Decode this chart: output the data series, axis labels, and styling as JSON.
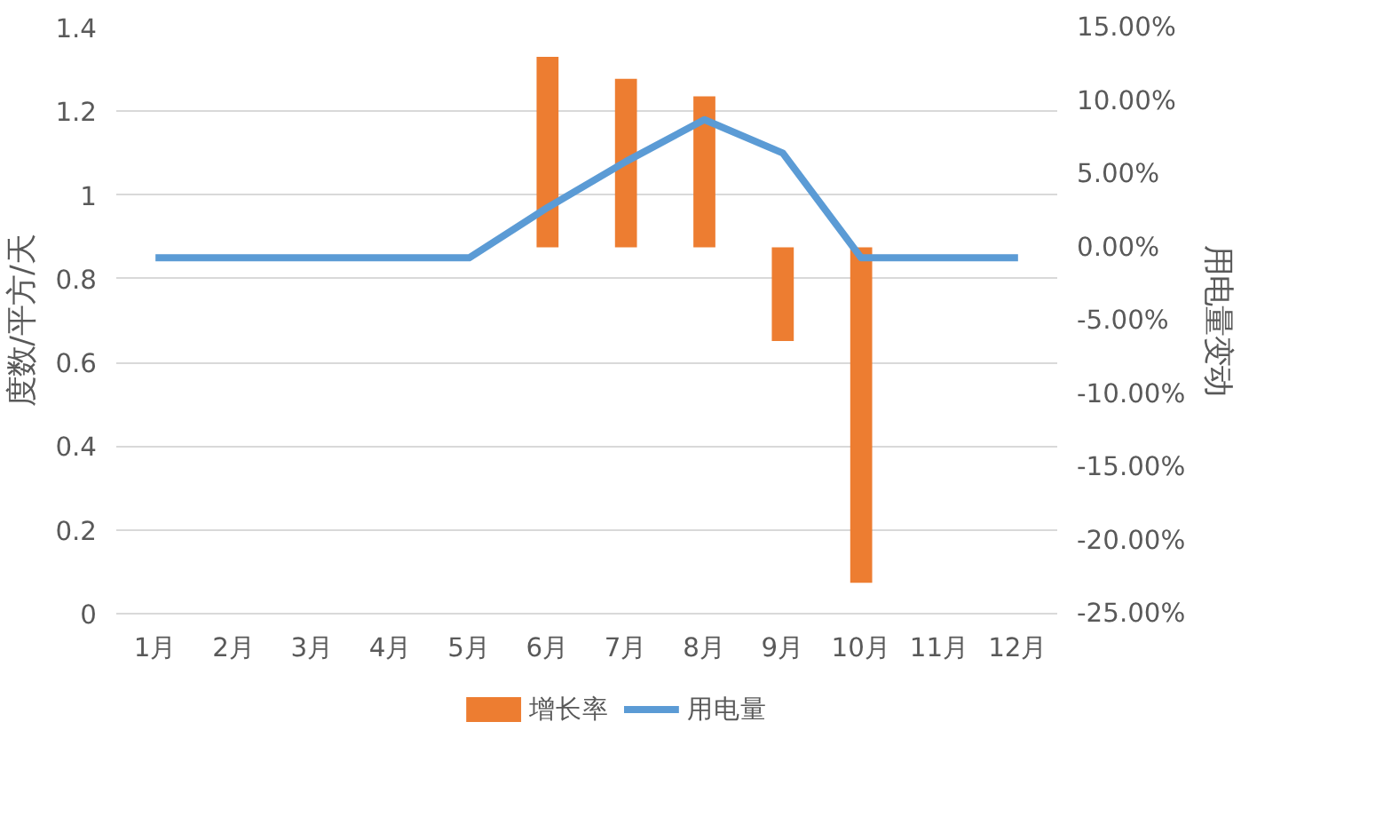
{
  "chart_data": {
    "type": "bar",
    "categories": [
      "1月",
      "2月",
      "3月",
      "4月",
      "5月",
      "6月",
      "7月",
      "8月",
      "9月",
      "10月",
      "11月",
      "12月"
    ],
    "ylabel": "度数/平方/天",
    "y2label": "用电量变动",
    "ylim": [
      0,
      1.4
    ],
    "yticks": [
      0,
      0.2,
      0.4,
      0.6,
      0.8,
      1,
      1.2,
      1.4
    ],
    "y2lim": [
      -25,
      15
    ],
    "y2ticks": [
      {
        "value": -25,
        "label": "-25.00%"
      },
      {
        "value": -20,
        "label": "-20.00%"
      },
      {
        "value": -15,
        "label": "-15.00%"
      },
      {
        "value": -10,
        "label": "-10.00%"
      },
      {
        "value": -5,
        "label": "-5.00%"
      },
      {
        "value": 0,
        "label": "0.00%"
      },
      {
        "value": 5,
        "label": "5.00%"
      },
      {
        "value": 10,
        "label": "10.00%"
      },
      {
        "value": 15,
        "label": "15.00%"
      }
    ],
    "series": [
      {
        "name": "增长率",
        "axis": "y2",
        "color": "#ed7d31",
        "values": [
          null,
          null,
          null,
          null,
          null,
          13.0,
          11.5,
          10.3,
          -6.4,
          -22.9,
          null,
          null
        ]
      },
      {
        "name": "用电量",
        "type": "line",
        "color": "#5b9bd5",
        "values": [
          0.85,
          0.85,
          0.85,
          0.85,
          0.85,
          0.97,
          1.08,
          1.18,
          1.1,
          0.85,
          0.85,
          0.85
        ]
      }
    ],
    "grid": "y",
    "legend": "bottom"
  }
}
